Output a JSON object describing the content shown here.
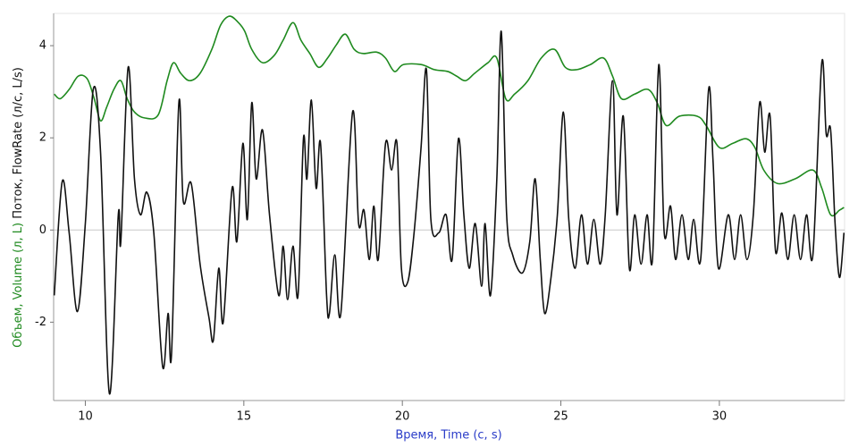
{
  "chart_data": {
    "type": "line",
    "x_label": "Время, Time (с, s)",
    "xlim": [
      9,
      33.95
    ],
    "xticks": [
      10,
      15,
      20,
      25,
      30
    ],
    "ylim": [
      -3.7,
      4.7
    ],
    "yticks": [
      -2,
      0,
      2,
      4
    ],
    "series": [
      {
        "name": "Поток, FlowRate (л/с, L/s)",
        "color": "#111111",
        "x": [
          9.02,
          9.27,
          9.49,
          9.75,
          10.0,
          10.25,
          10.48,
          10.76,
          11.04,
          11.12,
          11.35,
          11.55,
          11.74,
          11.94,
          12.16,
          12.44,
          12.61,
          12.72,
          12.95,
          13.09,
          13.34,
          13.62,
          13.9,
          14.04,
          14.21,
          14.35,
          14.63,
          14.78,
          14.97,
          15.11,
          15.25,
          15.39,
          15.59,
          15.81,
          16.1,
          16.24,
          16.38,
          16.55,
          16.71,
          16.88,
          16.99,
          17.13,
          17.28,
          17.42,
          17.61,
          17.7,
          17.87,
          18.06,
          18.43,
          18.62,
          18.79,
          18.96,
          19.1,
          19.24,
          19.47,
          19.66,
          19.83,
          19.97,
          20.17,
          20.37,
          20.59,
          20.76,
          20.9,
          21.15,
          21.38,
          21.57,
          21.77,
          21.94,
          22.11,
          22.3,
          22.5,
          22.61,
          22.78,
          22.98,
          23.12,
          23.29,
          23.48,
          23.79,
          24.02,
          24.19,
          24.35,
          24.49,
          24.69,
          24.89,
          25.08,
          25.25,
          25.45,
          25.65,
          25.84,
          26.04,
          26.24,
          26.4,
          26.63,
          26.77,
          26.97,
          27.16,
          27.33,
          27.53,
          27.72,
          27.89,
          28.09,
          28.26,
          28.46,
          28.62,
          28.82,
          29.02,
          29.19,
          29.41,
          29.66,
          29.8,
          29.97,
          30.28,
          30.48,
          30.67,
          30.87,
          31.07,
          31.27,
          31.43,
          31.6,
          31.77,
          31.97,
          32.16,
          32.36,
          32.56,
          32.75,
          32.95,
          33.23,
          33.37,
          33.51,
          33.65,
          33.79,
          33.93
        ],
        "values": [
          -1.42,
          1.05,
          -0.06,
          -1.77,
          0.14,
          3.05,
          1.69,
          -3.55,
          0.33,
          -0.25,
          3.53,
          1.11,
          0.33,
          0.82,
          -0.06,
          -2.97,
          -1.81,
          -2.68,
          2.76,
          0.62,
          1.01,
          -0.74,
          -1.9,
          -2.39,
          -0.83,
          -2.0,
          0.91,
          -0.25,
          1.88,
          0.23,
          2.76,
          1.11,
          2.17,
          0.33,
          -1.42,
          -0.35,
          -1.51,
          -0.35,
          -1.42,
          1.98,
          1.11,
          2.82,
          0.91,
          1.88,
          -1.42,
          -1.81,
          -0.54,
          -1.81,
          2.56,
          0.14,
          0.43,
          -0.64,
          0.52,
          -0.64,
          1.88,
          1.3,
          1.88,
          -0.83,
          -1.13,
          -0.06,
          1.79,
          3.48,
          0.23,
          -0.06,
          0.33,
          -0.64,
          1.98,
          0.33,
          -0.83,
          0.14,
          -1.22,
          0.14,
          -1.42,
          1.11,
          4.31,
          0.33,
          -0.54,
          -0.93,
          -0.25,
          1.11,
          -0.64,
          -1.81,
          -1.03,
          0.33,
          2.56,
          0.23,
          -0.83,
          0.33,
          -0.74,
          0.23,
          -0.74,
          0.33,
          3.24,
          0.33,
          2.47,
          -0.83,
          0.33,
          -0.74,
          0.33,
          -0.64,
          3.59,
          -0.06,
          0.52,
          -0.64,
          0.33,
          -0.64,
          0.23,
          -0.64,
          3.05,
          1.5,
          -0.83,
          0.33,
          -0.64,
          0.33,
          -0.64,
          0.33,
          2.76,
          1.69,
          2.47,
          -0.45,
          0.37,
          -0.64,
          0.33,
          -0.64,
          0.33,
          -0.54,
          3.63,
          2.08,
          2.17,
          0.14,
          -1.03,
          -0.06
        ]
      },
      {
        "name": "Объем, Volume (л, L)",
        "color": "#1f8a1f",
        "x": [
          9.02,
          9.21,
          9.49,
          9.78,
          10.06,
          10.28,
          10.48,
          10.67,
          10.9,
          11.12,
          11.32,
          11.55,
          11.88,
          12.3,
          12.58,
          12.78,
          13.01,
          13.29,
          13.62,
          13.99,
          14.27,
          14.55,
          14.83,
          15.03,
          15.25,
          15.59,
          15.96,
          16.24,
          16.55,
          16.8,
          17.08,
          17.36,
          17.64,
          17.92,
          18.2,
          18.48,
          18.76,
          19.19,
          19.47,
          19.75,
          20.03,
          20.59,
          21.01,
          21.43,
          21.71,
          21.99,
          22.28,
          22.7,
          22.98,
          23.26,
          23.54,
          23.96,
          24.38,
          24.8,
          25.14,
          25.51,
          25.93,
          26.35,
          26.63,
          26.91,
          27.33,
          27.75,
          28.04,
          28.32,
          28.74,
          29.3,
          29.58,
          30.0,
          30.42,
          30.84,
          31.12,
          31.4,
          31.83,
          32.39,
          32.95,
          33.23,
          33.51,
          33.79,
          33.93
        ],
        "values": [
          2.95,
          2.85,
          3.05,
          3.34,
          3.28,
          2.85,
          2.37,
          2.66,
          3.05,
          3.24,
          2.85,
          2.56,
          2.43,
          2.5,
          3.24,
          3.63,
          3.4,
          3.24,
          3.4,
          3.92,
          4.45,
          4.64,
          4.5,
          4.31,
          3.92,
          3.63,
          3.79,
          4.12,
          4.5,
          4.12,
          3.83,
          3.53,
          3.73,
          4.02,
          4.25,
          3.92,
          3.83,
          3.86,
          3.73,
          3.44,
          3.59,
          3.59,
          3.48,
          3.44,
          3.34,
          3.24,
          3.4,
          3.63,
          3.73,
          2.85,
          2.95,
          3.24,
          3.73,
          3.92,
          3.53,
          3.48,
          3.59,
          3.73,
          3.34,
          2.85,
          2.95,
          3.05,
          2.76,
          2.27,
          2.47,
          2.47,
          2.27,
          1.79,
          1.88,
          1.98,
          1.79,
          1.3,
          1.01,
          1.11,
          1.3,
          0.91,
          0.33,
          0.43,
          0.49
        ]
      }
    ]
  }
}
